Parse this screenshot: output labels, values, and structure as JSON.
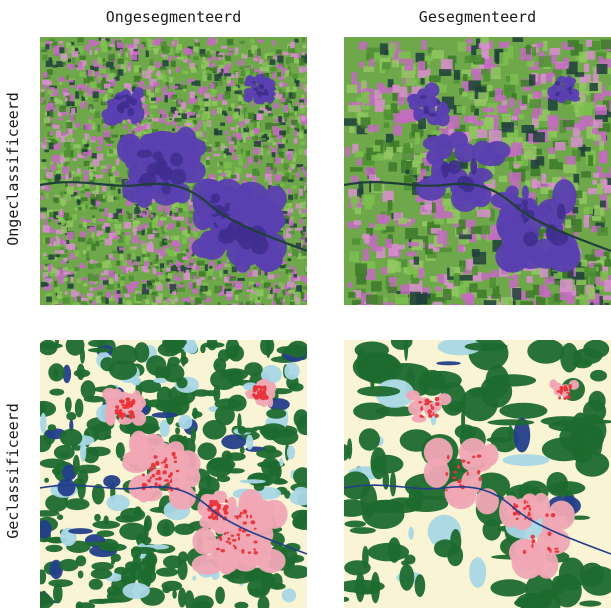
{
  "columns": [
    "Ongesegmenteerd",
    "Gesegmenteerd"
  ],
  "rows": [
    "Ongeclassificeerd",
    "Geclassificeerd"
  ],
  "palettes": {
    "false_color": {
      "base": "#6fa84a",
      "greens": [
        "#4f8f34",
        "#7cc04f",
        "#3d7a2a",
        "#92c862"
      ],
      "magenta": "#c66bc2",
      "pink": "#d98fd0",
      "urban": "#5a3fb0",
      "urban_dark": "#3f2f8f",
      "water": "#1f3f3a"
    },
    "classified": {
      "base": "#f8f4d4",
      "forest": "#1e6a2e",
      "urban": "#f0a6b4",
      "urban_core": "#e8343a",
      "water": "#a9d7e6",
      "water_dark": "#233e8a"
    }
  }
}
